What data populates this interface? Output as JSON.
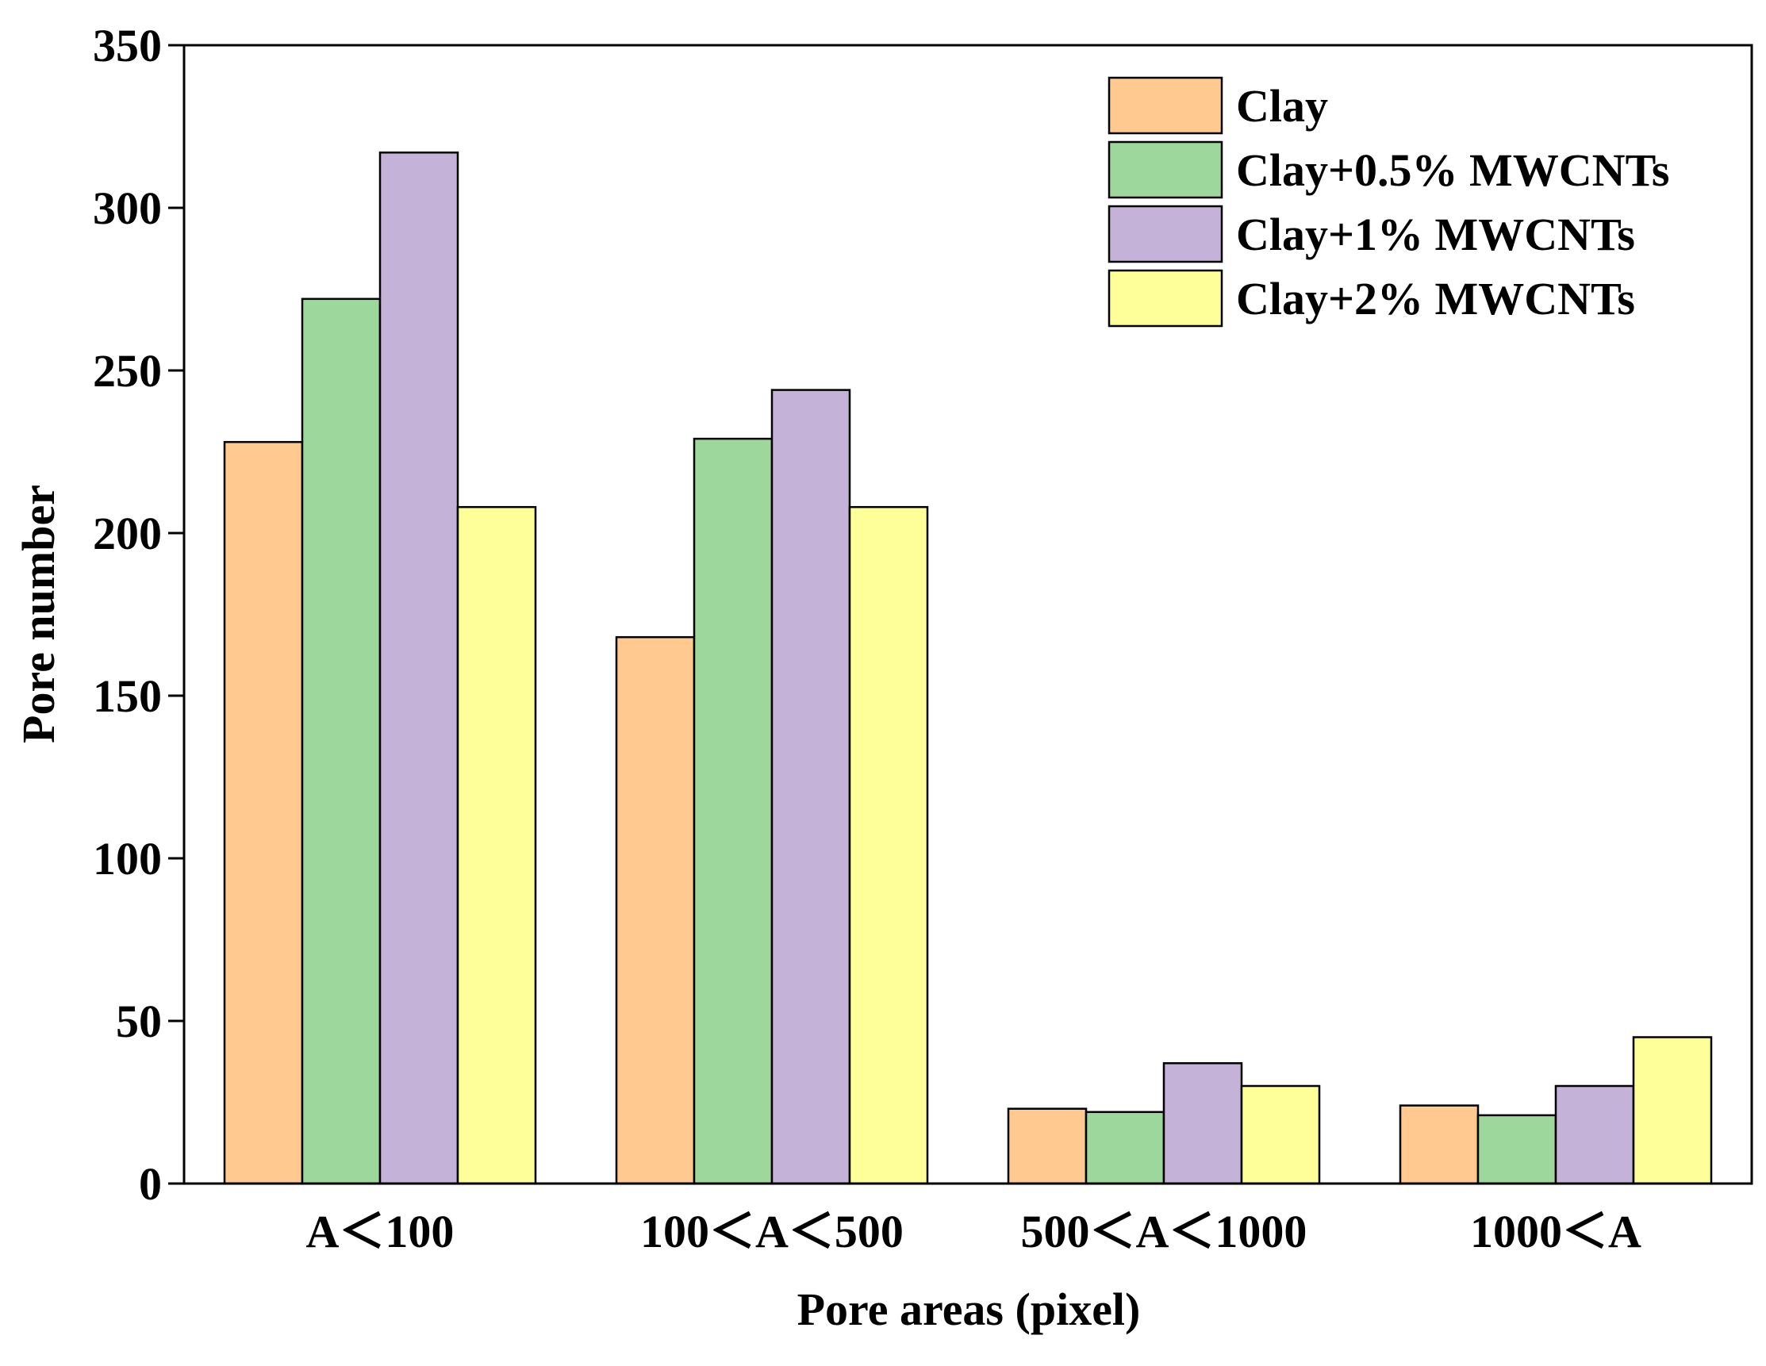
{
  "chart_data": {
    "type": "bar",
    "title": "",
    "xlabel": "Pore areas (pixel)",
    "ylabel": "Pore number",
    "ylim": [
      0,
      350
    ],
    "yticks": [
      0,
      50,
      100,
      150,
      200,
      250,
      300,
      350
    ],
    "ytick_labels": [
      "0",
      "50",
      "100",
      "150",
      "200",
      "250",
      "300",
      "350"
    ],
    "grid": false,
    "legend_position": "top-right",
    "categories": [
      "A＜100",
      "100＜A＜500",
      "500＜A＜1000",
      "1000＜A"
    ],
    "series": [
      {
        "name": "Clay",
        "color": "#FFC990",
        "values": [
          228,
          168,
          23,
          24
        ]
      },
      {
        "name": "Clay+0.5% MWCNTs",
        "color": "#9ED79B",
        "values": [
          272,
          229,
          22,
          21
        ]
      },
      {
        "name": "Clay+1% MWCNTs",
        "color": "#C5B2D8",
        "values": [
          317,
          244,
          37,
          30
        ]
      },
      {
        "name": "Clay+2% MWCNTs",
        "color": "#FFFF99",
        "values": [
          208,
          208,
          30,
          45
        ]
      }
    ]
  }
}
